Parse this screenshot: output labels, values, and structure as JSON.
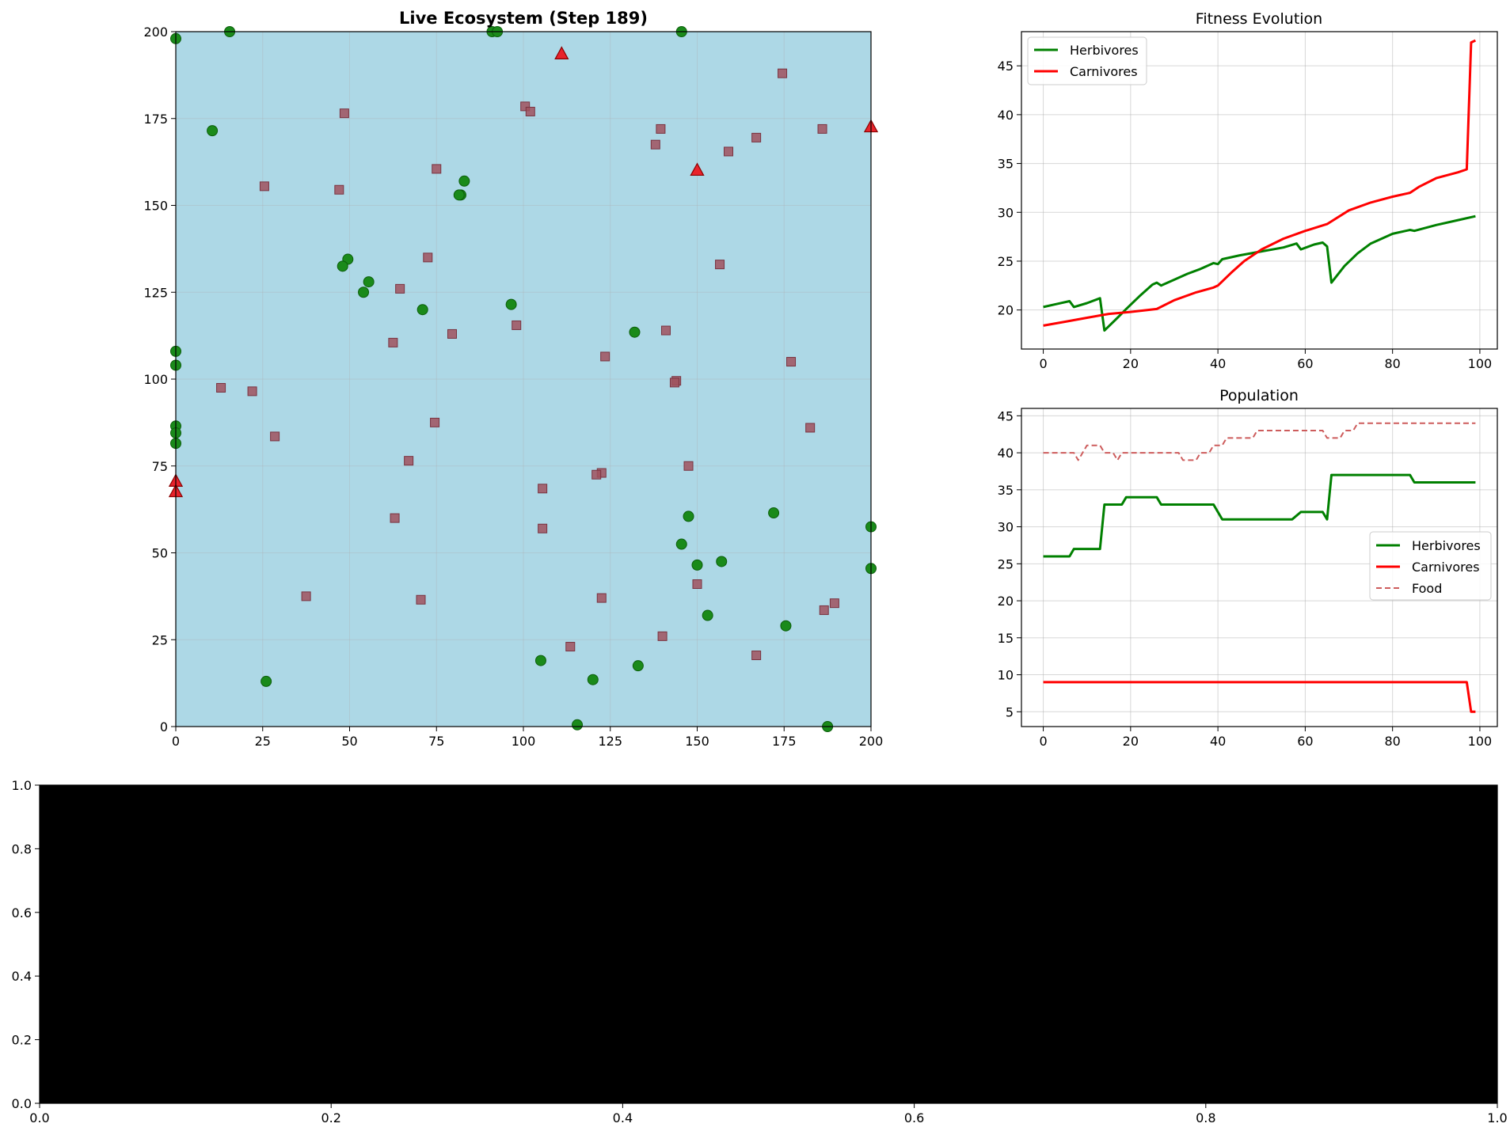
{
  "colors": {
    "herbivore": "#1a8a1a",
    "carnivore": "#e8232b",
    "food": "#a0525e",
    "world_bg": "#add8e6",
    "green_line": "#008000",
    "red_line": "#ff0000",
    "food_line": "#cd5c5c",
    "black_panel": "#000000"
  },
  "chart_data": [
    {
      "type": "scatter",
      "title": "Live Ecosystem (Step 189)",
      "xlim": [
        0,
        200
      ],
      "ylim": [
        0,
        200
      ],
      "xticks": [
        "0",
        "25",
        "50",
        "75",
        "100",
        "125",
        "150",
        "175",
        "200"
      ],
      "yticks": [
        "0",
        "25",
        "50",
        "75",
        "100",
        "125",
        "150",
        "175",
        "200"
      ],
      "grid": true,
      "series": [
        {
          "marker": "circle",
          "points": [
            [
              0,
              198
            ],
            [
              15.5,
              200
            ],
            [
              91,
              200
            ],
            [
              92.5,
              200
            ],
            [
              145.5,
              200
            ],
            [
              10.5,
              171.5
            ],
            [
              83,
              157
            ],
            [
              82,
              153
            ],
            [
              81.5,
              153
            ],
            [
              49.5,
              134.5
            ],
            [
              48,
              132.5
            ],
            [
              55.5,
              128
            ],
            [
              54,
              125
            ],
            [
              96.5,
              121.5
            ],
            [
              71,
              120
            ],
            [
              132,
              113.5
            ],
            [
              0,
              108
            ],
            [
              0,
              104
            ],
            [
              0,
              86.5
            ],
            [
              0,
              84.5
            ],
            [
              0,
              81.5
            ],
            [
              147.5,
              60.5
            ],
            [
              172,
              61.5
            ],
            [
              200,
              57.5
            ],
            [
              145.5,
              52.5
            ],
            [
              150,
              46.5
            ],
            [
              157,
              47.5
            ],
            [
              200,
              45.5
            ],
            [
              153,
              32
            ],
            [
              175.5,
              29
            ],
            [
              105,
              19
            ],
            [
              133,
              17.5
            ],
            [
              26,
              13
            ],
            [
              120,
              13.5
            ],
            [
              115.5,
              0.5
            ],
            [
              187.5,
              0
            ]
          ]
        },
        {
          "marker": "triangle",
          "points": [
            [
              111,
              193.5
            ],
            [
              200,
              172.5
            ],
            [
              150,
              160
            ],
            [
              0,
              70.5
            ],
            [
              0,
              67.5
            ]
          ]
        },
        {
          "marker": "square",
          "points": [
            [
              174.5,
              188
            ],
            [
              48.5,
              176.5
            ],
            [
              100.5,
              178.5
            ],
            [
              102,
              177
            ],
            [
              139.5,
              172
            ],
            [
              186,
              172
            ],
            [
              138,
              167.5
            ],
            [
              167,
              169.5
            ],
            [
              159,
              165.5
            ],
            [
              75,
              160.5
            ],
            [
              25.5,
              155.5
            ],
            [
              47,
              154.5
            ],
            [
              72.5,
              135
            ],
            [
              156.5,
              133
            ],
            [
              64.5,
              126
            ],
            [
              98,
              115.5
            ],
            [
              141,
              114
            ],
            [
              79.5,
              113
            ],
            [
              62.5,
              110.5
            ],
            [
              123.5,
              106.5
            ],
            [
              177,
              105
            ],
            [
              144,
              99.5
            ],
            [
              143.5,
              99
            ],
            [
              13,
              97.5
            ],
            [
              22,
              96.5
            ],
            [
              74.5,
              87.5
            ],
            [
              182.5,
              86
            ],
            [
              28.5,
              83.5
            ],
            [
              67,
              76.5
            ],
            [
              147.5,
              75
            ],
            [
              122.5,
              73
            ],
            [
              121,
              72.5
            ],
            [
              105.5,
              68.5
            ],
            [
              63,
              60
            ],
            [
              105.5,
              57
            ],
            [
              150,
              41
            ],
            [
              37.5,
              37.5
            ],
            [
              70.5,
              36.5
            ],
            [
              122.5,
              37
            ],
            [
              189.5,
              35.5
            ],
            [
              186.5,
              33.5
            ],
            [
              140,
              26
            ],
            [
              113.5,
              23
            ],
            [
              167,
              20.5
            ]
          ]
        }
      ]
    },
    {
      "type": "line",
      "title": "Fitness Evolution",
      "xlim": [
        -5,
        104
      ],
      "ylim": [
        16,
        48.5
      ],
      "xticks": [
        0,
        20,
        40,
        60,
        80,
        100
      ],
      "yticks": [
        20,
        25,
        30,
        35,
        40,
        45
      ],
      "grid": true,
      "legend": "top-left",
      "series": [
        {
          "name": "Herbivores",
          "x": [
            0,
            3,
            6,
            7,
            10,
            13,
            14,
            17,
            19,
            22,
            25,
            26,
            27,
            30,
            33,
            36,
            39,
            40,
            41,
            45,
            50,
            55,
            58,
            59,
            62,
            64,
            65,
            66,
            69,
            72,
            75,
            80,
            84,
            85,
            90,
            95,
            99
          ],
          "y": [
            20.3,
            20.6,
            20.9,
            20.3,
            20.7,
            21.2,
            17.9,
            19.2,
            20.1,
            21.4,
            22.6,
            22.8,
            22.5,
            23.1,
            23.7,
            24.2,
            24.8,
            24.7,
            25.2,
            25.6,
            26,
            26.4,
            26.8,
            26.2,
            26.7,
            26.9,
            26.5,
            22.8,
            24.5,
            25.8,
            26.8,
            27.8,
            28.2,
            28.1,
            28.7,
            29.2,
            29.6
          ]
        },
        {
          "name": "Carnivores",
          "x": [
            0,
            5,
            10,
            15,
            20,
            26,
            30,
            35,
            39,
            40,
            43,
            46,
            50,
            55,
            60,
            65,
            70,
            75,
            80,
            84,
            86,
            90,
            95,
            97,
            98,
            99
          ],
          "y": [
            18.4,
            18.8,
            19.2,
            19.6,
            19.8,
            20.1,
            21,
            21.8,
            22.3,
            22.5,
            23.8,
            25,
            26.2,
            27.3,
            28.1,
            28.8,
            30.2,
            31,
            31.6,
            32,
            32.6,
            33.5,
            34.1,
            34.4,
            47.4,
            47.6
          ]
        }
      ]
    },
    {
      "type": "line",
      "title": "Population",
      "xlim": [
        -5,
        104
      ],
      "ylim": [
        3,
        46
      ],
      "xticks": [
        0,
        20,
        40,
        60,
        80,
        100
      ],
      "yticks": [
        5,
        10,
        15,
        20,
        25,
        30,
        35,
        40,
        45
      ],
      "grid": true,
      "legend": "center-right",
      "series": [
        {
          "name": "Herbivores",
          "x": [
            0,
            6,
            7,
            13,
            14,
            17,
            18,
            19,
            26,
            27,
            39,
            41,
            57,
            59,
            64,
            65,
            66,
            84,
            85,
            99
          ],
          "y": [
            26,
            26,
            27,
            27,
            33,
            33,
            33,
            34,
            34,
            33,
            33,
            31,
            31,
            32,
            32,
            31,
            37,
            37,
            36,
            36
          ]
        },
        {
          "name": "Carnivores",
          "x": [
            0,
            97,
            98,
            99
          ],
          "y": [
            9,
            9,
            5,
            5
          ]
        },
        {
          "name": "Food",
          "dashed": true,
          "x": [
            0,
            6,
            7,
            8,
            9,
            10,
            13,
            14,
            16,
            17,
            18,
            19,
            31,
            32,
            35,
            36,
            38,
            39,
            41,
            42,
            45,
            46,
            48,
            49,
            64,
            65,
            68,
            69,
            71,
            72,
            99
          ],
          "y": [
            40,
            40,
            40,
            39,
            40,
            41,
            41,
            40,
            40,
            39,
            40,
            40,
            40,
            39,
            39,
            40,
            40,
            41,
            41,
            42,
            42,
            42,
            42,
            43,
            43,
            42,
            42,
            43,
            43,
            44,
            44
          ]
        }
      ]
    },
    {
      "type": "line",
      "title": "",
      "xlim": [
        0,
        1
      ],
      "ylim": [
        0,
        1
      ],
      "xticks": [
        "0.0",
        "0.2",
        "0.4",
        "0.6",
        "0.8",
        "1.0"
      ],
      "yticks": [
        "0.0",
        "0.2",
        "0.4",
        "0.6",
        "0.8",
        "1.0"
      ],
      "series": []
    }
  ]
}
